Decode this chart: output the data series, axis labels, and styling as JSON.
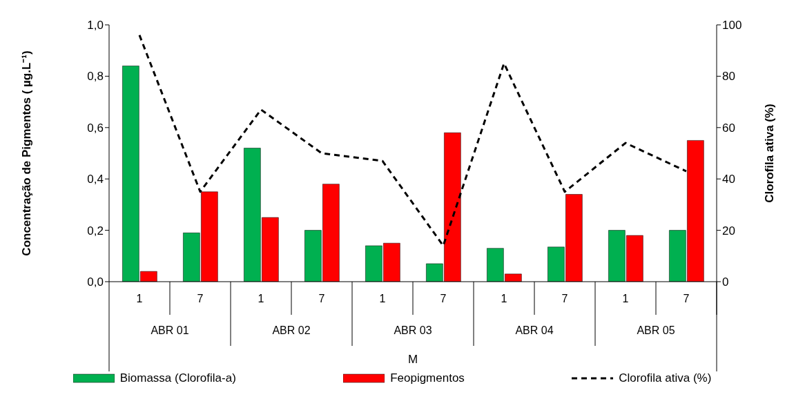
{
  "chart_data": {
    "type": "bar",
    "categories": [
      "1",
      "7",
      "1",
      "7",
      "1",
      "7",
      "1",
      "7",
      "1",
      "7"
    ],
    "annotations": [
      "ABR 01",
      "ABR 02",
      "ABR 03",
      "ABR 04",
      "ABR 05"
    ],
    "xlabel": "M",
    "ylabel": "Concentração de Pigmentos ( µg.L⁻¹)",
    "y2label": "Clorofila ativa (%)",
    "series": [
      {
        "name": "Biomassa (Clorofila-a)",
        "color": "#00b050",
        "values": [
          0.84,
          0.19,
          0.52,
          0.2,
          0.14,
          0.07,
          0.13,
          0.135,
          0.2,
          0.2
        ]
      },
      {
        "name": "Feopigmentos",
        "color": "#ff0000",
        "values": [
          0.04,
          0.35,
          0.25,
          0.38,
          0.15,
          0.58,
          0.03,
          0.34,
          0.18,
          0.55
        ]
      },
      {
        "name": "Clorofila ativa (%)",
        "type": "line",
        "axis": "y2",
        "color": "#000000",
        "values": [
          96,
          35,
          67,
          50,
          47,
          14,
          85,
          35,
          54,
          43
        ]
      }
    ],
    "ylim": [
      0,
      1
    ],
    "yticks": [
      {
        "value": 0,
        "label": "0,0"
      },
      {
        "value": 0.2,
        "label": "0,2"
      },
      {
        "value": 0.4,
        "label": "0,4"
      },
      {
        "value": 0.6,
        "label": "0,6"
      },
      {
        "value": 0.8,
        "label": "0,8"
      },
      {
        "value": 1,
        "label": "1,0"
      }
    ],
    "y2lim": [
      0,
      100
    ],
    "y2ticks": [
      0,
      20,
      40,
      60,
      80,
      100
    ],
    "grid": false,
    "legend": "bottom",
    "line_style": "dashed"
  }
}
